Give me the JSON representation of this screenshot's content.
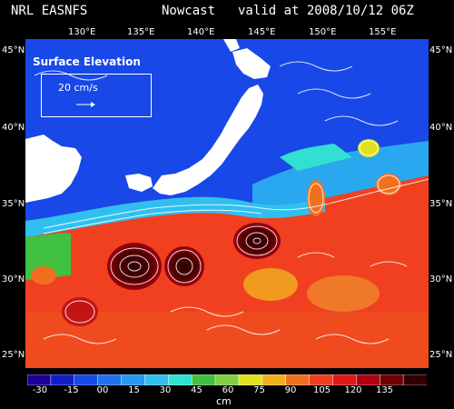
{
  "header": {
    "model": "NRL EASNFS",
    "product": "Nowcast",
    "valid": "valid at 2008/10/12 06Z"
  },
  "map": {
    "lon_labels": [
      "130°E",
      "135°E",
      "140°E",
      "145°E",
      "150°E",
      "155°E"
    ],
    "lat_labels_left": [
      "45°N",
      "40°N",
      "35°N",
      "30°N",
      "25°N"
    ],
    "lat_labels_right": [
      "45°N",
      "40°N",
      "35°N",
      "30°N",
      "25°N"
    ],
    "field": "Surface Elevation",
    "reference_vector": "20 cm/s",
    "land_color": "#ffffff",
    "background_color": "#000000"
  },
  "colorbar": {
    "ticks": [
      "-30",
      "-15",
      "00",
      "15",
      "30",
      "45",
      "60",
      "75",
      "90",
      "105",
      "120",
      "135"
    ],
    "unit": "cm",
    "colors": [
      "#1a0098",
      "#1020c8",
      "#1848e8",
      "#2070f0",
      "#2898f0",
      "#30c0f0",
      "#30e0d0",
      "#40c040",
      "#80d040",
      "#e0e020",
      "#f0b020",
      "#f07020",
      "#f04020",
      "#e01818",
      "#b00010",
      "#700000",
      "#300000"
    ]
  }
}
